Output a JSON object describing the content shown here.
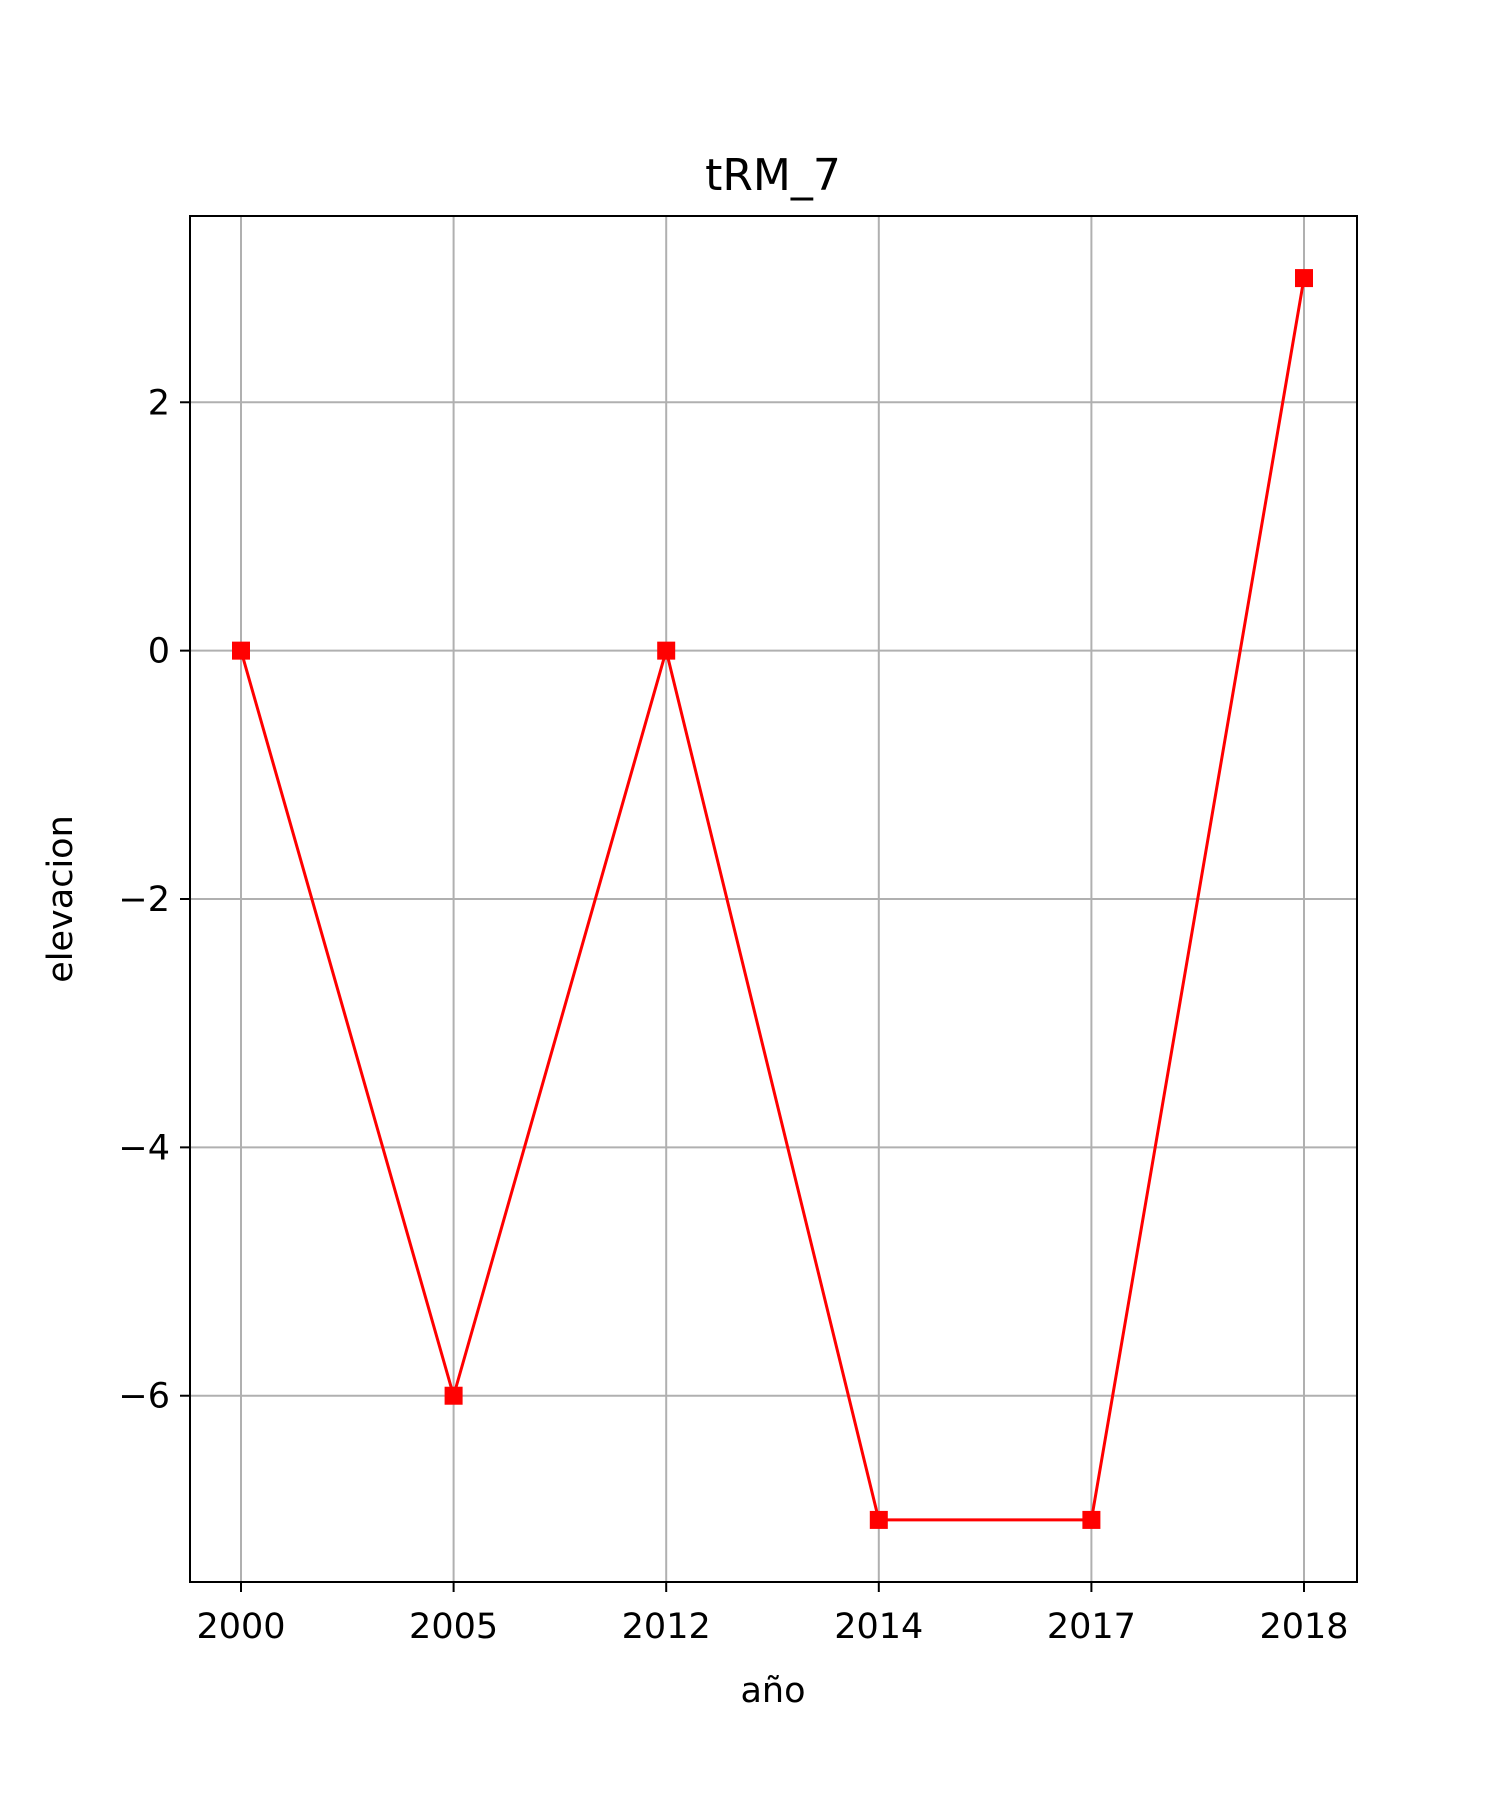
{
  "chart_data": {
    "type": "line",
    "title": "tRM_7",
    "xlabel": "año",
    "ylabel": "elevacion",
    "categories": [
      "2000",
      "2005",
      "2012",
      "2014",
      "2017",
      "2018"
    ],
    "series": [
      {
        "values": [
          0,
          -6,
          0,
          -7,
          -7,
          3
        ]
      }
    ],
    "y_ticks": [
      {
        "value": -6,
        "label": "−6"
      },
      {
        "value": -4,
        "label": "−4"
      },
      {
        "value": -2,
        "label": "−2"
      },
      {
        "value": 0,
        "label": "0"
      },
      {
        "value": 2,
        "label": "2"
      }
    ],
    "ylim": [
      -7.5,
      3.5
    ],
    "grid": true,
    "line_color": "#ff0000",
    "marker": "square"
  }
}
